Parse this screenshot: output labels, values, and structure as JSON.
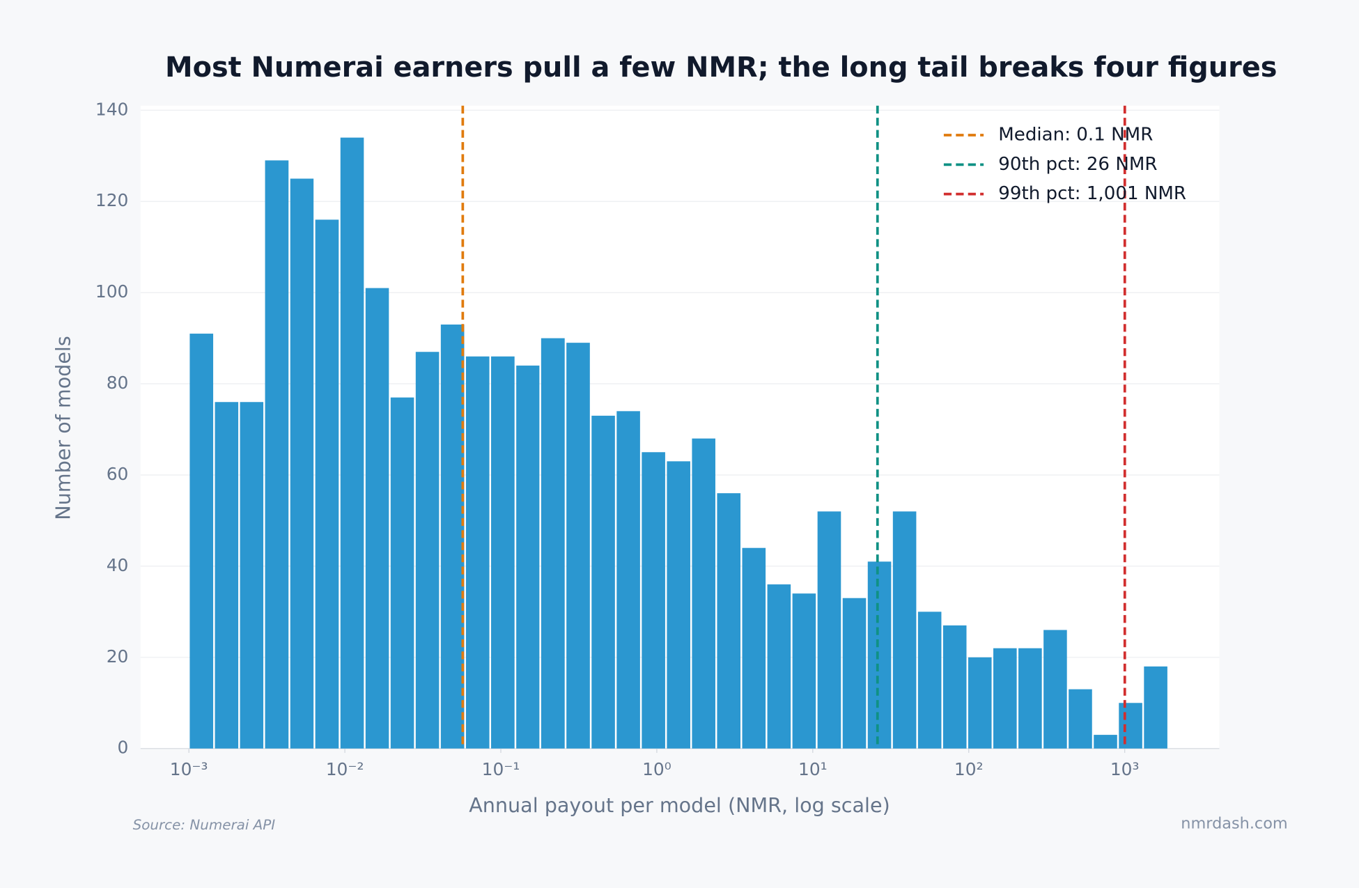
{
  "chart_data": {
    "type": "histogram",
    "title": "Most Numerai earners pull a few NMR; the long tail breaks four figures",
    "xlabel": "Annual payout per model (NMR, log scale)",
    "ylabel": "Number of models",
    "source": "Source: Numerai API",
    "watermark": "nmrdash.com",
    "x_log_scale": true,
    "grid": true,
    "legend": "upper right",
    "color": "#2b97d0",
    "bins": [
      0.001,
      0.00145,
      0.0021,
      0.00304,
      0.00441,
      0.00638,
      0.00925,
      0.0134,
      0.0194,
      0.0281,
      0.0407,
      0.059,
      0.0855,
      0.124,
      0.179,
      0.26,
      0.377,
      0.546,
      0.791,
      1.146,
      1.66,
      2.404,
      3.483,
      5.047,
      7.311,
      10.59,
      15.35,
      22.23,
      32.21,
      46.67,
      67.61,
      97.95,
      141.9,
      205.6,
      297.9,
      431.5,
      625.2,
      905.7,
      1312,
      1901
    ],
    "counts": [
      91,
      76,
      76,
      129,
      125,
      116,
      134,
      101,
      77,
      87,
      93,
      86,
      86,
      84,
      90,
      89,
      73,
      74,
      65,
      63,
      68,
      56,
      44,
      36,
      34,
      52,
      33,
      41,
      52,
      30,
      27,
      20,
      22,
      22,
      26,
      13,
      3,
      10,
      18
    ],
    "reference_lines": [
      {
        "label": "Median: 0.1 NMR",
        "value": 0.057,
        "color": "#e07b0e"
      },
      {
        "label": "90th pct: 26 NMR",
        "value": 26,
        "color": "#0f9184"
      },
      {
        "label": "99th pct: 1,001 NMR",
        "value": 1001,
        "color": "#d12e2e"
      }
    ],
    "xlim": [
      0.00049,
      4040
    ],
    "xticks": [
      {
        "value": 0.001,
        "label": "10⁻³"
      },
      {
        "value": 0.01,
        "label": "10⁻²"
      },
      {
        "value": 0.1,
        "label": "10⁻¹"
      },
      {
        "value": 1,
        "label": "10⁰"
      },
      {
        "value": 10,
        "label": "10¹"
      },
      {
        "value": 100,
        "label": "10²"
      },
      {
        "value": 1000,
        "label": "10³"
      }
    ],
    "ylim": [
      0,
      141
    ],
    "yticks": [
      0,
      20,
      40,
      60,
      80,
      100,
      120,
      140
    ]
  }
}
